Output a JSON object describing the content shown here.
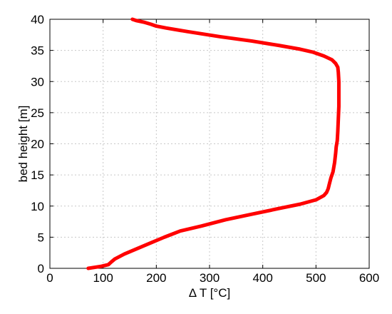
{
  "chart_data": {
    "type": "line",
    "xlabel": "Δ T [°C]",
    "ylabel": "bed height [m]",
    "xlim": [
      0,
      600
    ],
    "ylim": [
      0,
      40
    ],
    "xticks": [
      "0",
      "100",
      "200",
      "300",
      "400",
      "500",
      "600"
    ],
    "yticks": [
      "0",
      "5",
      "10",
      "15",
      "20",
      "25",
      "30",
      "35",
      "40"
    ],
    "grid": true,
    "series_color": "#ff0000",
    "series": [
      {
        "x": [
          72,
          95,
          110,
          115,
          122,
          140,
          165,
          190,
          215,
          245,
          285,
          330,
          380,
          430,
          470,
          500,
          515,
          520,
          523,
          525,
          528,
          532,
          535,
          537,
          538,
          540,
          541,
          542,
          543,
          543,
          543,
          542,
          541,
          537,
          530,
          515,
          495,
          470,
          430,
          380,
          320,
          260,
          218,
          200,
          190,
          178,
          162,
          155
        ],
        "y": [
          0,
          0.3,
          0.6,
          1,
          1.5,
          2.3,
          3.2,
          4.1,
          5,
          6,
          6.8,
          7.8,
          8.7,
          9.6,
          10.3,
          11,
          11.7,
          12.2,
          12.8,
          13.5,
          14.5,
          15.5,
          17,
          18.5,
          19.5,
          20.5,
          22,
          24,
          26,
          28,
          30,
          31.5,
          32.3,
          32.9,
          33.5,
          34.1,
          34.7,
          35.2,
          35.8,
          36.5,
          37.2,
          38,
          38.6,
          38.9,
          39.2,
          39.5,
          39.8,
          40
        ]
      }
    ]
  }
}
